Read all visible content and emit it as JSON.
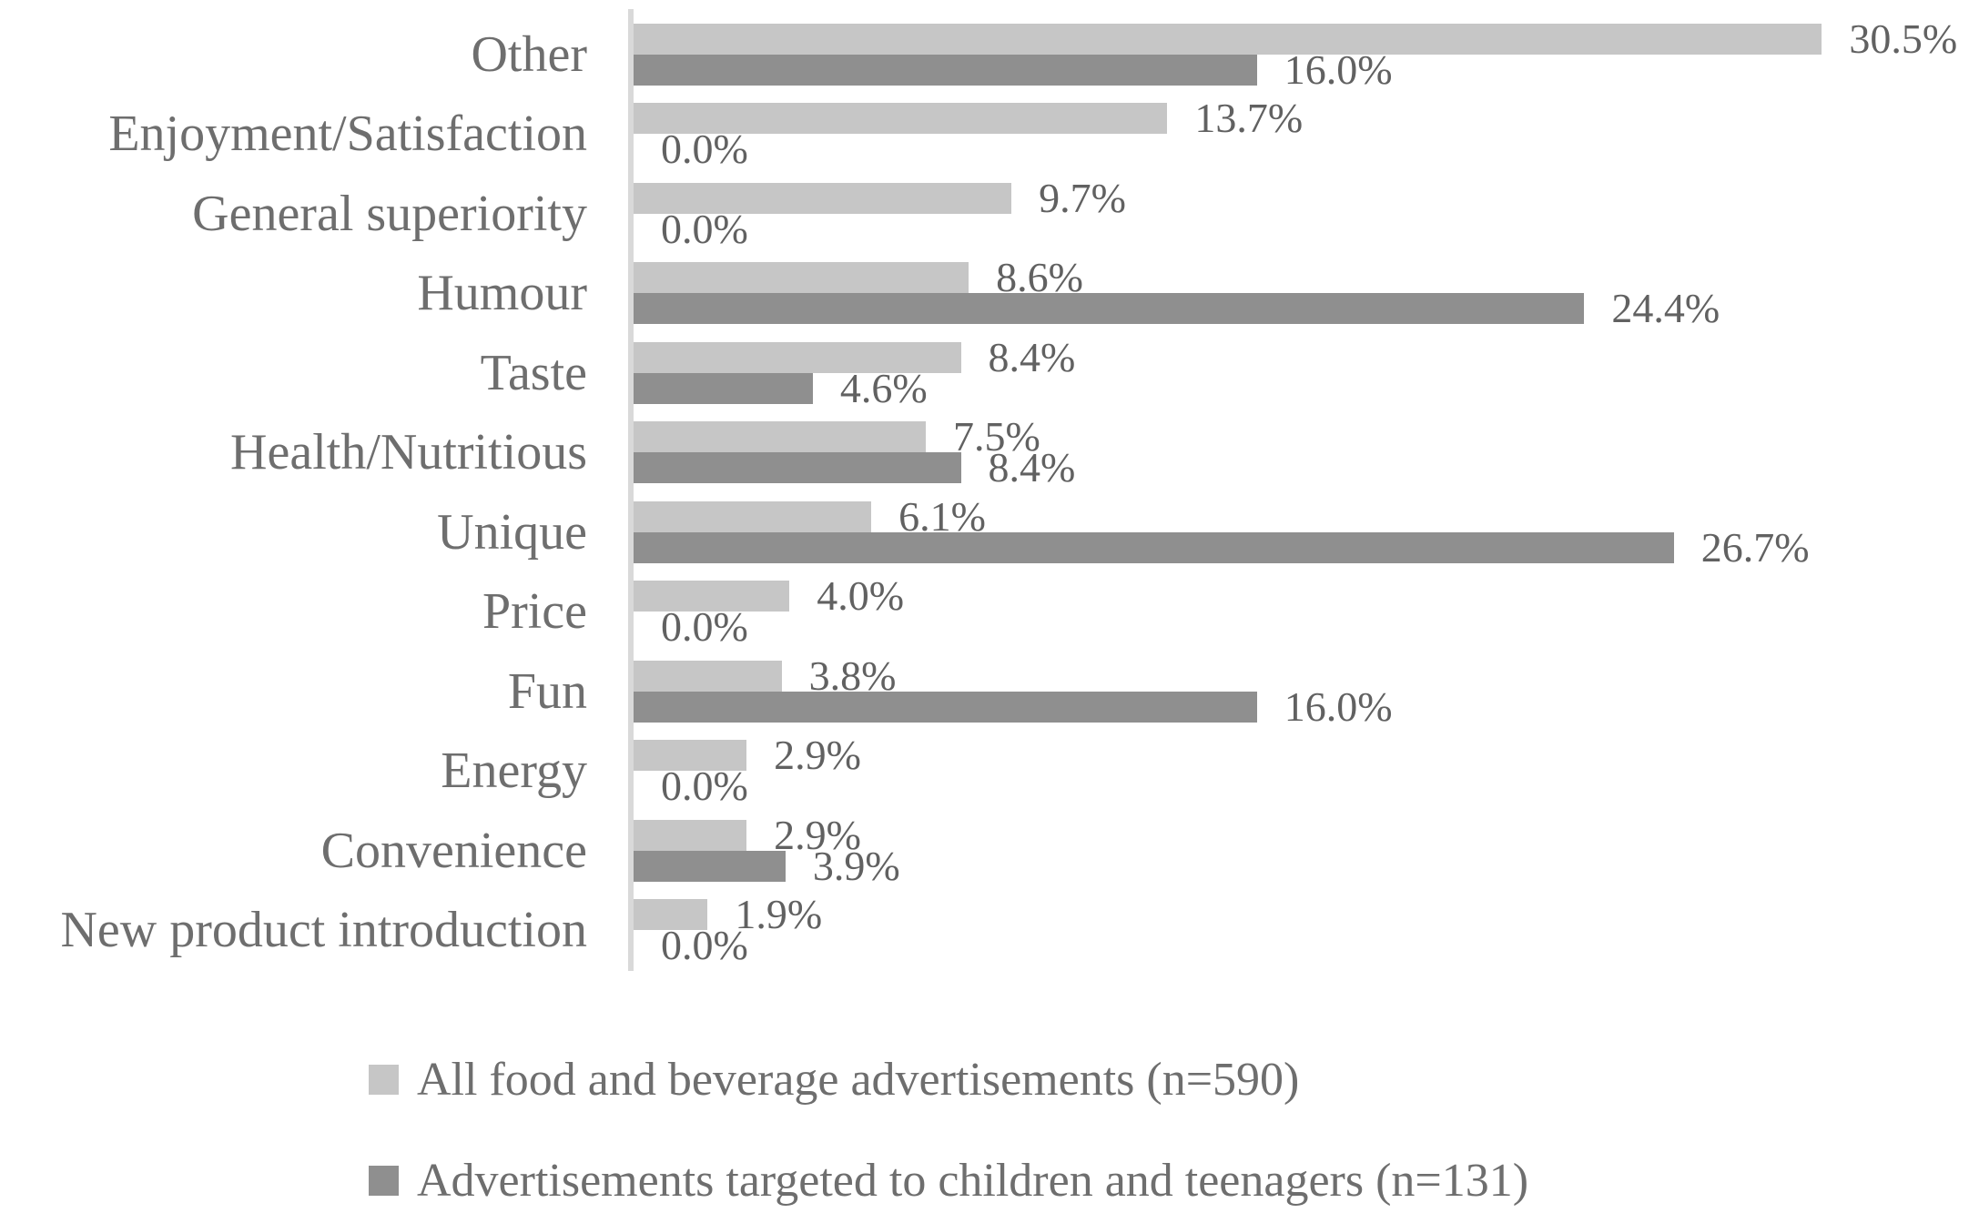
{
  "chart_data": {
    "type": "bar",
    "orientation": "horizontal",
    "title": "",
    "xlabel": "",
    "ylabel": "",
    "value_suffix": "%",
    "value_decimals": 1,
    "xlim": [
      0,
      34
    ],
    "grid": false,
    "data_labels": true,
    "legend_position": "bottom",
    "background_color": "#FFFFFF",
    "axis_line_color": "#D9D9D9",
    "label_text_color": "#6E6E6E",
    "value_text_color": "#616161",
    "categories": [
      "Other",
      "Enjoyment/Satisfaction",
      "General superiority",
      "Humour",
      "Taste",
      "Health/Nutritious",
      "Unique",
      "Price",
      "Fun",
      "Energy",
      "Convenience",
      "New product introduction"
    ],
    "series": [
      {
        "name": "All food and beverage advertisements (n=590)",
        "color": "#C6C6C6",
        "values": [
          30.5,
          13.7,
          9.7,
          8.6,
          8.4,
          7.5,
          6.1,
          4.0,
          3.8,
          2.9,
          2.9,
          1.9
        ]
      },
      {
        "name": "Advertisements targeted to children and teenagers (n=131)",
        "color": "#8F8F8F",
        "values": [
          16.0,
          0.0,
          0.0,
          24.4,
          4.6,
          8.4,
          26.7,
          0.0,
          16.0,
          0.0,
          3.9,
          0.0
        ]
      }
    ]
  }
}
